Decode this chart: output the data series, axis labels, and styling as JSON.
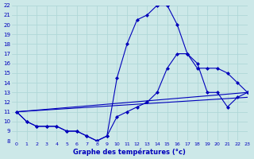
{
  "title": "Graphe des températures (°c)",
  "xlim": [
    -0.5,
    23
  ],
  "ylim": [
    8,
    22
  ],
  "yticks": [
    8,
    9,
    10,
    11,
    12,
    13,
    14,
    15,
    16,
    17,
    18,
    19,
    20,
    21,
    22
  ],
  "xticks": [
    0,
    1,
    2,
    3,
    4,
    5,
    6,
    7,
    8,
    9,
    10,
    11,
    12,
    13,
    14,
    15,
    16,
    17,
    18,
    19,
    20,
    21,
    22,
    23
  ],
  "bg_color": "#cce8e8",
  "line_color": "#0000bb",
  "curve1_x": [
    0,
    1,
    2,
    3,
    4,
    5,
    6,
    7,
    8,
    9,
    10,
    11,
    12,
    13,
    14,
    15,
    16,
    17,
    18,
    19,
    20,
    21,
    22,
    23
  ],
  "curve1_y": [
    11,
    10,
    9.5,
    9.5,
    9.5,
    9.0,
    9.0,
    8.5,
    8.0,
    8.5,
    14.5,
    18.0,
    20.5,
    21.0,
    22.0,
    22.0,
    20.0,
    17.0,
    16.0,
    13.0,
    13.0,
    11.5,
    12.5,
    13.0
  ],
  "curve2_x": [
    0,
    1,
    2,
    3,
    4,
    5,
    6,
    7,
    8,
    9,
    10,
    11,
    12,
    13,
    14,
    15,
    16,
    17,
    18,
    19,
    20,
    21,
    22,
    23
  ],
  "curve2_y": [
    11,
    10,
    9.5,
    9.5,
    9.5,
    9.0,
    9.0,
    8.5,
    8.0,
    8.5,
    10.5,
    11.0,
    11.5,
    12.0,
    13.0,
    15.5,
    17.0,
    17.0,
    15.5,
    15.5,
    15.5,
    15.0,
    14.0,
    13.0
  ],
  "line3_x": [
    0,
    23
  ],
  "line3_y": [
    11,
    13.0
  ],
  "line4_x": [
    0,
    23
  ],
  "line4_y": [
    11,
    12.5
  ]
}
